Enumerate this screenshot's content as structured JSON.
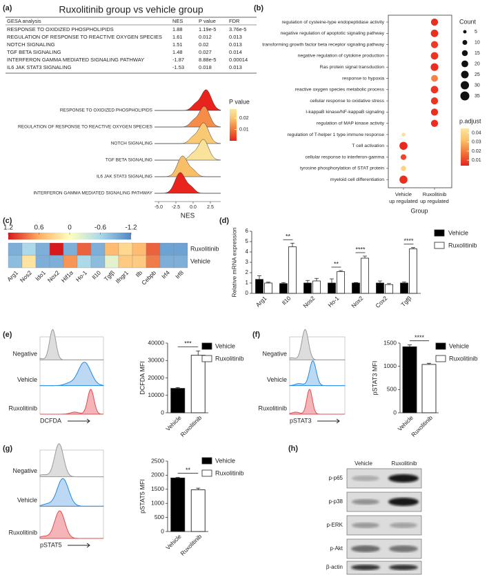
{
  "panels": {
    "a": {
      "label": "(a)",
      "title": "Ruxolitinib group vs vehicle group",
      "table": {
        "header": [
          "GESA analysis",
          "NES",
          "P value",
          "FDR"
        ],
        "rows": [
          [
            "RESPONSE TO OXIDIZED PHOSPHOLIPIDS",
            "1.88",
            "1.19e-5",
            "3.76e-5"
          ],
          [
            "REGULATION OF RESPONSE TO REACTIVE OXYGEN SPECIES",
            "1.61",
            "0.012",
            "0.013"
          ],
          [
            "NOTCH SIGNALING",
            "1.51",
            "0.02",
            "0.013"
          ],
          [
            "TGF BETA SIGNALING",
            "1.48",
            "0.027",
            "0.014"
          ],
          [
            "INTERFERON GAMMA MEDIATED SIGNALING PATHWAY",
            "-1.87",
            "8.88e-5",
            "0.00014"
          ],
          [
            "IL6 JAK STAT3 SIGNALING",
            "-1.53",
            "0.018",
            "0.013"
          ]
        ]
      },
      "ridge": {
        "type": "ridge",
        "categories": [
          "RESPONSE TO OXIDIZED PHOSPHOLIPIDS",
          "REGULATION OF RESPONSE TO REACTIVE OXYGEN SPECIES",
          "NOTCH SIGNALING",
          "TGF BETA SIGNALING",
          "IL6 JAK STAT3 SIGNALING",
          "INTERFERON GAMMA MEDIATED SIGNALING PATHWAY"
        ],
        "nes": [
          1.88,
          1.61,
          1.51,
          1.48,
          -1.53,
          -1.87
        ],
        "pvalues": [
          1.19e-05,
          0.012,
          0.02,
          0.027,
          0.018,
          8.88e-05
        ],
        "xlabel": "NES",
        "xlim": [
          -5.6,
          4
        ],
        "xticks": [
          {
            "value": -5,
            "label": "-5.0"
          },
          -2.5,
          {
            "value": 0,
            "label": "0.0"
          },
          2.5
        ],
        "colorbar": {
          "title": "P value",
          "clim": [
            0,
            0.028
          ],
          "ticks": [
            0.02,
            0.01
          ]
        }
      }
    },
    "b": {
      "label": "(b)",
      "type": "dot",
      "terms": [
        "regulation of cysteine-type endopeptidase activity",
        "negative regulation of apoptotic signaling pathway",
        "transforming growth factor beta receptor signaling pathway",
        "negative regulation of cytokine production",
        "Ras protein signal transduction",
        "response to hypoxia",
        "reactive oxygen species metabolic process",
        "cellular response to oxidative stress",
        "I-kappaB kinase/NF-kappaB signaling",
        "regulation of MAP kinase activity",
        "regulation of T-helper 1 type immune response",
        "T cell activation",
        "cellular response to interferon-gamma",
        "tyrosine phosphorylation of STAT protein",
        "myeloid cell differentiation"
      ],
      "x_groups": [
        [
          "Vehicle",
          "up regulated"
        ],
        [
          "Ruxolitinib",
          "up regulated"
        ]
      ],
      "group": [
        1,
        1,
        1,
        1,
        1,
        1,
        1,
        1,
        1,
        1,
        0,
        0,
        0,
        0,
        0
      ],
      "count": [
        22,
        24,
        22,
        24,
        26,
        20,
        24,
        22,
        22,
        22,
        6,
        28,
        14,
        12,
        28
      ],
      "p_adjust": [
        0.006,
        0.006,
        0.008,
        0.007,
        0.006,
        0.02,
        0.007,
        0.007,
        0.006,
        0.006,
        0.042,
        0.005,
        0.01,
        0.038,
        0.006
      ],
      "xlabel": "Group",
      "size_legend": {
        "title": "Count",
        "values": [
          5,
          10,
          15,
          20,
          25,
          30,
          35
        ]
      },
      "color_legend": {
        "title": "p.adjust",
        "clim": [
          0.004,
          0.045
        ],
        "ticks": [
          0.04,
          0.03,
          0.02,
          0.01
        ]
      }
    },
    "c": {
      "label": "(c)",
      "type": "heatmap",
      "colorbar": {
        "clim": [
          1.2,
          -1.2
        ],
        "ticks": [
          1.2,
          0.6,
          0,
          -0.6,
          -1.2
        ]
      },
      "genes": [
        "Arg1",
        "Nos2",
        "Ido1",
        "Nox2",
        "Hif1α",
        "Ho-1",
        "Il10",
        "Tgfβ",
        "Ifngr1",
        "Ilb",
        "Cebpb",
        "Irf4",
        "Irf8"
      ],
      "rows": [
        "Ruxolitinib",
        "Vehicle"
      ],
      "values": [
        [
          -0.9,
          -0.6,
          -0.9,
          1.2,
          -0.9,
          0.9,
          -0.9,
          0.5,
          0.3,
          0.5,
          0.9,
          -1.0,
          -1.0
        ],
        [
          -0.8,
          0.2,
          -0.9,
          -0.9,
          0.7,
          -0.6,
          -0.8,
          -0.2,
          0.4,
          0.4,
          0.8,
          -0.9,
          -0.9
        ]
      ]
    },
    "d": {
      "label": "(d)",
      "type": "bar",
      "ylabel": "Relative mRNA expression",
      "categories": [
        "Arg1",
        "Il10",
        "Nos2",
        "Ho-1",
        "Nox2",
        "Cox2",
        "Tgfβ"
      ],
      "series": [
        {
          "name": "Vehicle",
          "color": "#000000",
          "values": [
            1.35,
            0.95,
            1.0,
            1.0,
            1.0,
            1.0,
            1.0
          ],
          "errors": [
            0.35,
            0.1,
            0.25,
            0.4,
            0.05,
            0.2,
            0.1
          ]
        },
        {
          "name": "Ruxolitinib",
          "color": "#ffffff",
          "values": [
            1.0,
            4.5,
            1.2,
            2.1,
            3.4,
            0.85,
            4.3
          ],
          "errors": [
            0.08,
            0.35,
            0.25,
            0.1,
            0.2,
            0.1,
            0.12
          ]
        }
      ],
      "ylim": [
        0,
        6
      ],
      "yticks": [
        0,
        1,
        2,
        3,
        4,
        5,
        6
      ],
      "annotations": [
        {
          "category": 1,
          "label": "**"
        },
        {
          "category": 3,
          "label": "**"
        },
        {
          "category": 4,
          "label": "****"
        },
        {
          "category": 6,
          "label": "****"
        }
      ]
    },
    "e": {
      "label": "(e)",
      "histogram": {
        "labels": [
          "Negative",
          "Vehicle",
          "Ruxolitinib"
        ],
        "xlabel": "DCFDA"
      },
      "bar": {
        "type": "bar",
        "ylabel": "DCFDA MFI",
        "categories": [
          "Vehicle",
          "Ruxolitinib"
        ],
        "values": [
          14000,
          33000
        ],
        "errors": [
          500,
          2500
        ],
        "colors": [
          "#000000",
          "#ffffff"
        ],
        "ylim": [
          0,
          40000
        ],
        "yticks": [
          0,
          10000,
          20000,
          30000,
          40000
        ],
        "significance": "***",
        "legend": [
          "Vehicle",
          "Ruxolitinib"
        ]
      }
    },
    "f": {
      "label": "(f)",
      "histogram": {
        "labels": [
          "Negative",
          "Vehicle",
          "Ruxolitinib"
        ],
        "xlabel": "pSTAT3"
      },
      "bar": {
        "type": "bar",
        "ylabel": "pSTAT3 MFI",
        "categories": [
          "Vehicle",
          "Ruxolitinib"
        ],
        "values": [
          1420,
          1040
        ],
        "errors": [
          40,
          25
        ],
        "colors": [
          "#000000",
          "#ffffff"
        ],
        "ylim": [
          0,
          1500
        ],
        "yticks": [
          0,
          500,
          1000,
          1500
        ],
        "significance": "****",
        "legend": [
          "Vehicle",
          "Ruxolitinib"
        ]
      }
    },
    "g": {
      "label": "(g)",
      "histogram": {
        "labels": [
          "Negative",
          "Vehicle",
          "Ruxolitinib"
        ],
        "xlabel": "pSTAT5"
      },
      "bar": {
        "type": "bar",
        "ylabel": "pSTAT5 MFI",
        "categories": [
          "Vehicle",
          "Ruxolitinib"
        ],
        "values": [
          1900,
          1480
        ],
        "errors": [
          20,
          60
        ],
        "colors": [
          "#000000",
          "#ffffff"
        ],
        "ylim": [
          0,
          2500
        ],
        "yticks": [
          0,
          500,
          1000,
          1500,
          2000,
          2500
        ],
        "significance": "**",
        "legend": [
          "Vehicle",
          "Ruxolitinib"
        ]
      }
    },
    "h": {
      "label": "(h)",
      "columns": [
        "Vehicle",
        "Ruxolitinib"
      ],
      "rows": [
        "p-p65",
        "p-p38",
        "p-ERK",
        "p-Akt",
        "β-actin"
      ]
    }
  }
}
